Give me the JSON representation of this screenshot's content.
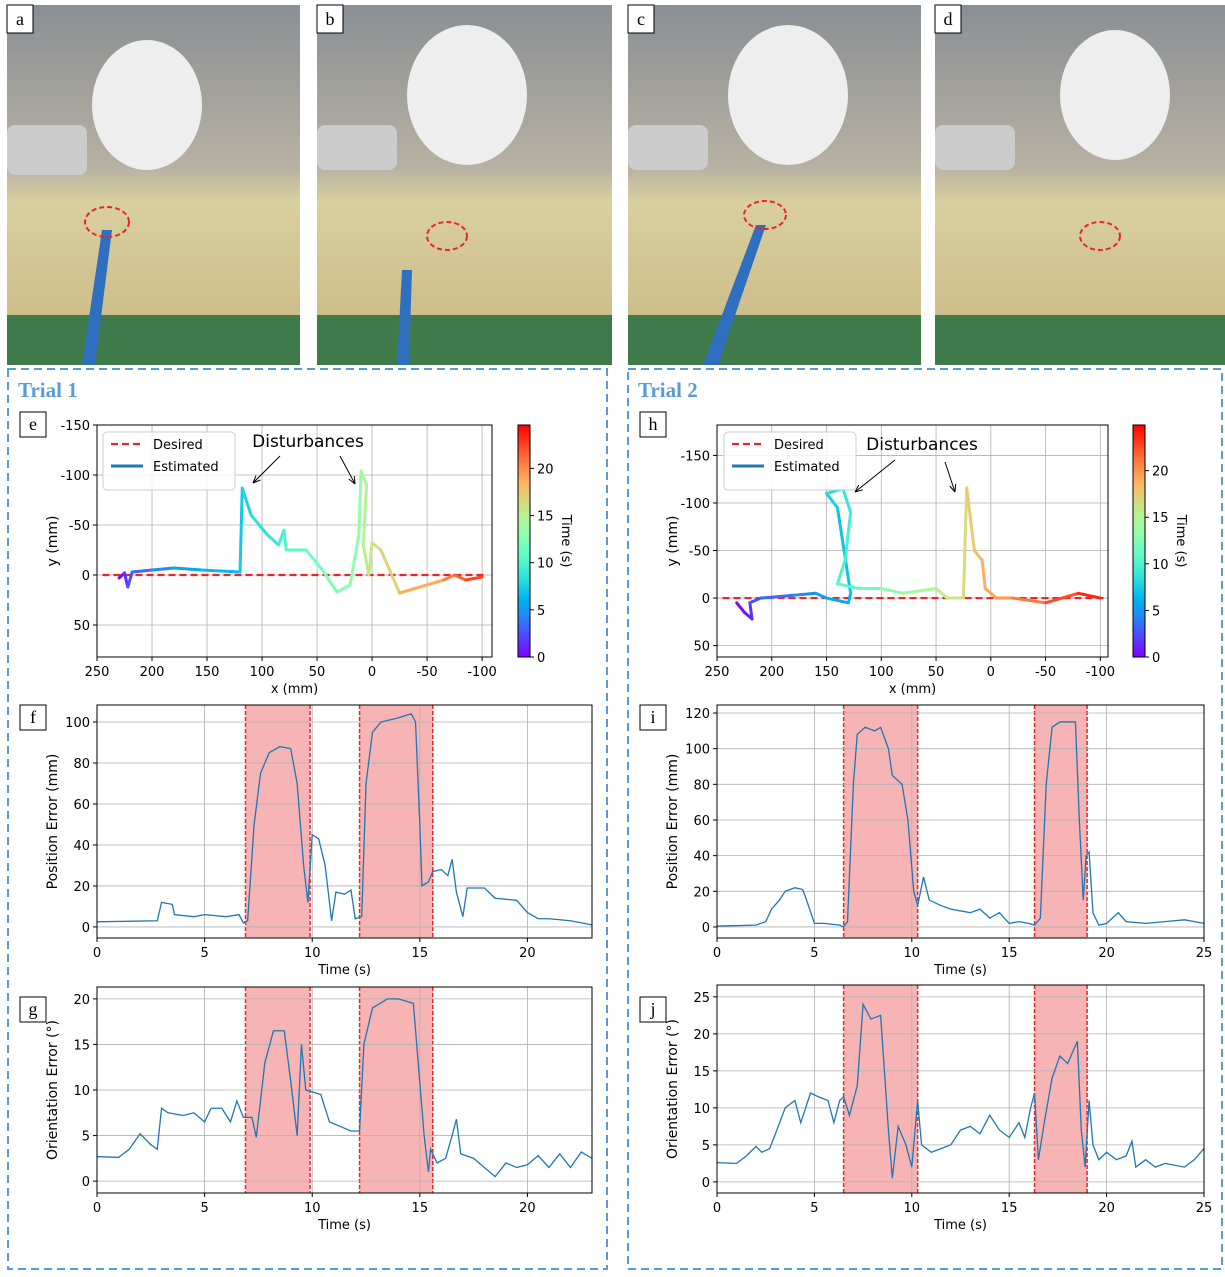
{
  "photos": [
    {
      "label": "a"
    },
    {
      "label": "b"
    },
    {
      "label": "c"
    },
    {
      "label": "d"
    }
  ],
  "trials": [
    {
      "title": "Trial 1"
    },
    {
      "title": "Trial 2"
    }
  ],
  "chart_data": [
    {
      "type": "line",
      "panel": "e",
      "xlabel": "x (mm)",
      "ylabel": "y (mm)",
      "xlim": [
        250,
        -109
      ],
      "ylim": [
        82,
        -150
      ],
      "xticks": [
        250,
        200,
        150,
        100,
        50,
        0,
        -50,
        -100
      ],
      "yticks": [
        -150,
        -100,
        -50,
        0,
        50
      ],
      "grid": true,
      "legend": "upper left",
      "annotation": "Disturbances",
      "series": [
        {
          "name": "Desired",
          "color": "#e8262a",
          "style": "dashed",
          "x": [
            245,
            -105
          ],
          "values": [
            0,
            0
          ]
        },
        {
          "name": "Estimated",
          "color": "#1f77b4",
          "colormap": "rainbow",
          "x": [
            230,
            225,
            222,
            218,
            200,
            180,
            155,
            120,
            118,
            110,
            95,
            85,
            80,
            78,
            60,
            45,
            32,
            20,
            12,
            10,
            5,
            8,
            3,
            0,
            -8,
            -25,
            -65,
            -75,
            -85,
            -100
          ],
          "values": [
            3,
            -2,
            12,
            -3,
            -5,
            -7,
            -5,
            -3,
            -87,
            -60,
            -40,
            -30,
            -45,
            -25,
            -25,
            -5,
            17,
            10,
            -40,
            -104,
            -90,
            -30,
            0,
            -32,
            -25,
            18,
            5,
            0,
            5,
            2
          ],
          "time": [
            0,
            1,
            2,
            3,
            4,
            5,
            6,
            6.9,
            7.3,
            8,
            8.5,
            9,
            9.8,
            10.2,
            11,
            12,
            12.5,
            12.8,
            13.2,
            13.8,
            14.6,
            15,
            15.4,
            16,
            16.5,
            17.5,
            20,
            21,
            22,
            23
          ]
        }
      ],
      "colorbar": {
        "label": "Time (s)",
        "lim": [
          0,
          24.6
        ],
        "ticks": [
          0,
          5,
          10,
          15,
          20
        ]
      }
    },
    {
      "type": "line",
      "panel": "f",
      "xlabel": "Time (s)",
      "ylabel": "Position Error (mm)",
      "xlim": [
        0,
        23
      ],
      "ylim": [
        -5.4,
        108.3
      ],
      "xticks": [
        0,
        5,
        10,
        15,
        20
      ],
      "yticks": [
        0,
        20,
        40,
        60,
        80,
        100
      ],
      "grid": true,
      "shaded_spans": [
        [
          6.9,
          9.9
        ],
        [
          12.2,
          15.6
        ]
      ],
      "span_color": "#f7b4b4",
      "span_edge_color": "#e8262a",
      "series": [
        {
          "color": "#1f77b4",
          "x": [
            0,
            2.8,
            3,
            3.5,
            3.6,
            4.5,
            5,
            6,
            6.6,
            6.8,
            7,
            7.3,
            7.6,
            8,
            8.5,
            9,
            9.3,
            9.6,
            9.8,
            10,
            10.3,
            10.6,
            10.9,
            11.1,
            11.5,
            11.8,
            12,
            12.3,
            12.5,
            12.8,
            13.2,
            14,
            14.6,
            14.8,
            15,
            15.1,
            15.4,
            15.6,
            16,
            16.3,
            16.5,
            16.7,
            17,
            17.2,
            18,
            18.5,
            19.5,
            20,
            20.5,
            21,
            22,
            23
          ],
          "values": [
            2.5,
            3,
            12,
            11,
            6,
            5,
            6,
            5,
            6,
            2,
            3,
            50,
            75,
            85,
            88,
            87,
            70,
            30,
            12,
            45,
            43,
            30,
            3,
            17,
            16,
            18,
            4,
            5,
            70,
            95,
            100,
            102,
            104,
            100,
            50,
            20,
            22,
            27,
            28,
            25,
            33,
            17,
            5,
            19,
            19,
            14,
            13,
            7,
            4,
            4,
            3,
            1
          ]
        }
      ]
    },
    {
      "type": "line",
      "panel": "g",
      "xlabel": "Time (s)",
      "ylabel": "Orientation Error (°)",
      "xlim": [
        0,
        23
      ],
      "ylim": [
        -1.3,
        21.3
      ],
      "xticks": [
        0,
        5,
        10,
        15,
        20
      ],
      "yticks": [
        0,
        5,
        10,
        15,
        20
      ],
      "grid": true,
      "shaded_spans": [
        [
          6.9,
          9.9
        ],
        [
          12.2,
          15.6
        ]
      ],
      "span_color": "#f7b4b4",
      "span_edge_color": "#e8262a",
      "series": [
        {
          "color": "#1f77b4",
          "x": [
            0,
            1,
            1.5,
            2,
            2.5,
            2.8,
            3,
            3.3,
            4,
            4.5,
            5,
            5.3,
            5.8,
            6.2,
            6.5,
            6.8,
            7.2,
            7.4,
            7.8,
            8.2,
            8.7,
            9,
            9.3,
            9.5,
            9.7,
            10,
            10.4,
            10.8,
            11.3,
            11.8,
            12.2,
            12.4,
            12.8,
            13.5,
            14,
            14.7,
            15.2,
            15.4,
            15.5,
            15.8,
            16.2,
            16.5,
            16.7,
            16.9,
            17.5,
            18,
            18.5,
            19,
            19.5,
            20,
            20.5,
            21,
            21.5,
            22,
            22.5,
            23
          ],
          "values": [
            2.7,
            2.6,
            3.5,
            5.2,
            4,
            3.5,
            8,
            7.5,
            7.2,
            7.5,
            6.5,
            8,
            8,
            6.5,
            8.8,
            7,
            7,
            4.8,
            13,
            16.5,
            16.5,
            11,
            5,
            15,
            10,
            9.8,
            9.5,
            6.5,
            6,
            5.5,
            5.5,
            15,
            19,
            20,
            20,
            19.5,
            5,
            1,
            3.5,
            2,
            2.5,
            5,
            6.8,
            3,
            2.5,
            1.5,
            0.5,
            2,
            1.5,
            1.8,
            2.8,
            1.5,
            3,
            1.5,
            3.2,
            2.5
          ]
        }
      ]
    },
    {
      "type": "line",
      "panel": "h",
      "xlabel": "x (mm)",
      "ylabel": "y (mm)",
      "xlim": [
        250,
        -107
      ],
      "ylim": [
        62,
        -182
      ],
      "xticks": [
        250,
        200,
        150,
        100,
        50,
        0,
        -50,
        -100
      ],
      "yticks": [
        -150,
        -100,
        -50,
        0,
        50
      ],
      "grid": true,
      "legend": "upper left",
      "annotation": "Disturbances",
      "series": [
        {
          "name": "Desired",
          "color": "#e8262a",
          "style": "dashed",
          "x": [
            245,
            -105
          ],
          "values": [
            0,
            0
          ]
        },
        {
          "name": "Estimated",
          "color": "#1f77b4",
          "colormap": "rainbow",
          "x": [
            232,
            225,
            218,
            220,
            210,
            180,
            160,
            150,
            130,
            128,
            140,
            150,
            135,
            128,
            133,
            140,
            120,
            100,
            80,
            50,
            40,
            25,
            22,
            15,
            8,
            5,
            -5,
            -20,
            -50,
            -80,
            -100
          ],
          "values": [
            5,
            15,
            22,
            5,
            0,
            -3,
            -5,
            0,
            5,
            -5,
            -95,
            -110,
            -115,
            -90,
            -40,
            -15,
            -10,
            -10,
            -5,
            -10,
            0,
            0,
            -116,
            -50,
            -40,
            -10,
            0,
            0,
            5,
            -5,
            0
          ],
          "time": [
            0,
            0.5,
            1,
            2,
            3,
            4,
            5,
            5.5,
            6,
            6.5,
            7.3,
            8,
            8.5,
            9.3,
            10,
            10.3,
            11,
            12,
            14,
            15,
            16,
            16.3,
            17.2,
            18,
            18.8,
            19,
            19.5,
            20,
            22,
            23,
            24.5
          ]
        }
      ],
      "colorbar": {
        "label": "Time (s)",
        "lim": [
          0,
          24.9
        ],
        "ticks": [
          0,
          5,
          10,
          15,
          20
        ]
      }
    },
    {
      "type": "line",
      "panel": "i",
      "xlabel": "Time (s)",
      "ylabel": "Position Error (mm)",
      "xlim": [
        0,
        25
      ],
      "ylim": [
        -6.2,
        124.5
      ],
      "xticks": [
        0,
        5,
        10,
        15,
        20,
        25
      ],
      "yticks": [
        0,
        20,
        40,
        60,
        80,
        100,
        120
      ],
      "grid": true,
      "shaded_spans": [
        [
          6.5,
          10.3
        ],
        [
          16.3,
          19
        ]
      ],
      "span_color": "#f7b4b4",
      "span_edge_color": "#e8262a",
      "series": [
        {
          "color": "#1f77b4",
          "x": [
            0,
            2,
            2.5,
            2.8,
            3.2,
            3.5,
            4,
            4.4,
            4.6,
            5,
            5.5,
            6.3,
            6.5,
            6.7,
            7,
            7.2,
            7.6,
            8.1,
            8.4,
            8.8,
            9,
            9.5,
            9.8,
            10.1,
            10.3,
            10.6,
            10.9,
            11.5,
            12,
            13,
            13.5,
            14,
            14.5,
            15,
            15.5,
            16,
            16.3,
            16.6,
            16.9,
            17.2,
            17.6,
            18.4,
            18.6,
            18.8,
            18.95,
            19.1,
            19.3,
            19.6,
            20,
            20.6,
            21,
            22,
            23,
            24,
            25
          ],
          "values": [
            0.5,
            1,
            3,
            10,
            15,
            20,
            22,
            21,
            15,
            2,
            2,
            1,
            0,
            3,
            80,
            108,
            112,
            110,
            112,
            100,
            85,
            80,
            60,
            20,
            12,
            28,
            15,
            12,
            10,
            8,
            10,
            5,
            8,
            2,
            3,
            2,
            1,
            5,
            80,
            112,
            115,
            115,
            60,
            15,
            40,
            42,
            8,
            1,
            2,
            8,
            3,
            2,
            3,
            4,
            2
          ]
        }
      ]
    },
    {
      "type": "line",
      "panel": "j",
      "xlabel": "Time (s)",
      "ylabel": "Orientation Error (°)",
      "xlim": [
        0,
        25
      ],
      "ylim": [
        -1.5,
        26.6
      ],
      "xticks": [
        0,
        5,
        10,
        15,
        20,
        25
      ],
      "yticks": [
        0,
        5,
        10,
        15,
        20,
        25
      ],
      "grid": true,
      "shaded_spans": [
        [
          6.5,
          10.3
        ],
        [
          16.3,
          19
        ]
      ],
      "span_color": "#f7b4b4",
      "span_edge_color": "#e8262a",
      "series": [
        {
          "color": "#1f77b4",
          "x": [
            0,
            1,
            1.5,
            2,
            2.3,
            2.7,
            3,
            3.5,
            4,
            4.3,
            4.8,
            5.2,
            5.7,
            6,
            6.3,
            6.5,
            6.8,
            7.2,
            7.5,
            7.9,
            8.4,
            8.8,
            9,
            9.3,
            9.7,
            10,
            10.3,
            10.5,
            11,
            11.5,
            12,
            12.5,
            13,
            13.5,
            14,
            14.5,
            15,
            15.5,
            15.8,
            16.1,
            16.3,
            16.5,
            16.8,
            17.2,
            17.6,
            18,
            18.5,
            18.7,
            18.9,
            19.1,
            19.3,
            19.6,
            20,
            20.5,
            21,
            21.3,
            21.5,
            22,
            22.5,
            23,
            24,
            24.5,
            25
          ],
          "values": [
            2.6,
            2.5,
            3.5,
            4.8,
            4,
            4.5,
            6.5,
            10,
            11,
            8,
            12,
            11.5,
            11,
            8,
            11,
            11.5,
            9,
            13,
            24,
            22,
            22.5,
            7,
            0.5,
            7.5,
            5,
            2,
            11,
            5,
            4,
            4.5,
            5,
            7,
            7.5,
            6.5,
            9,
            7,
            6,
            8,
            6,
            10,
            12,
            3,
            8,
            14,
            17,
            16,
            19,
            7,
            2,
            11,
            5,
            3,
            4,
            3,
            3.5,
            5.5,
            2,
            3,
            2,
            2.5,
            2,
            3,
            4.5
          ]
        }
      ]
    }
  ]
}
